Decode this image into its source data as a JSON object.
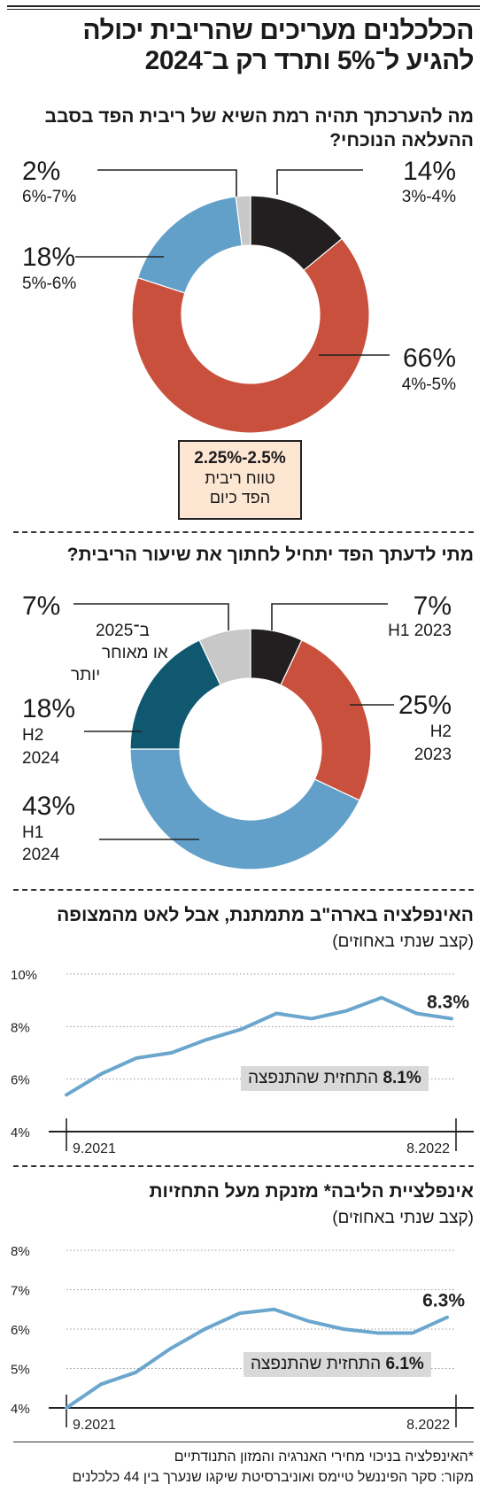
{
  "title_lines": [
    "הכלכלנים מעריכים שהריבית יכולה",
    "להגיע ל־5% ותרד רק ב־2024"
  ],
  "colors": {
    "black": "#231f20",
    "red": "#c9503c",
    "lightblue": "#62a0c9",
    "gray": "#c8c8c8",
    "darkteal": "#0f5870",
    "line": "#6aa6cd",
    "box": "#fde6d2"
  },
  "chart_data": [
    {
      "type": "pie",
      "title": "מה להערכתך תהיה רמת השיא של ריבית הפד בסבב ההעלאה הנוכחי?",
      "slices": [
        {
          "label": "3%-4%",
          "value": 14,
          "pct": "14%",
          "color": "#231f20"
        },
        {
          "label": "4%-5%",
          "value": 66,
          "pct": "66%",
          "color": "#c9503c"
        },
        {
          "label": "5%-6%",
          "value": 18,
          "pct": "18%",
          "color": "#62a0c9"
        },
        {
          "label": "6%-7%",
          "value": 2,
          "pct": "2%",
          "color": "#c8c8c8"
        }
      ],
      "annotation": {
        "value": "2.25%-2.5%",
        "text": "טווח ריבית הפד כיום"
      }
    },
    {
      "type": "pie",
      "title": "מתי לדעתך הפד יתחיל לחתוך את שיעור הריבית?",
      "slices": [
        {
          "label": "H1 2023",
          "value": 7,
          "pct": "7%",
          "color": "#231f20"
        },
        {
          "label": "H2 2023",
          "value": 25,
          "pct": "25%",
          "color": "#c9503c"
        },
        {
          "label": "H1 2024",
          "value": 43,
          "pct": "43%",
          "color": "#62a0c9"
        },
        {
          "label": "H2 2024",
          "value": 18,
          "pct": "18%",
          "color": "#0f5870"
        },
        {
          "label": "ב־2025 או מאוחר יותר",
          "value": 7,
          "pct": "7%",
          "color": "#c8c8c8"
        }
      ]
    },
    {
      "type": "line",
      "title": "האינפלציה בארה\"ב מתמתנת, אבל לאט מהמצופה",
      "subtitle": "(קצב שנתי באחוזים)",
      "y_ticks": [
        "10%",
        "8%",
        "6%",
        "4%"
      ],
      "ylim": [
        4,
        10
      ],
      "x_labels": [
        "9.2021",
        "8.2022"
      ],
      "values": [
        5.4,
        6.2,
        6.8,
        7.0,
        7.5,
        7.9,
        8.5,
        8.3,
        8.6,
        9.1,
        8.5,
        8.3
      ],
      "end_label": "8.3%",
      "forecast": {
        "value": "8.1%",
        "text": "התחזית שהתנפצה"
      }
    },
    {
      "type": "line",
      "title": "אינפלציית הליבה* מזנקת מעל התחזיות",
      "subtitle": "(קצב שנתי באחוזים)",
      "y_ticks": [
        "8%",
        "7%",
        "6%",
        "5%",
        "4%"
      ],
      "ylim": [
        4,
        8
      ],
      "x_labels": [
        "9.2021",
        "8.2022"
      ],
      "values": [
        4.0,
        4.6,
        4.9,
        5.5,
        6.0,
        6.4,
        6.5,
        6.2,
        6.0,
        5.9,
        5.9,
        6.3
      ],
      "end_label": "6.3%",
      "forecast": {
        "value": "6.1%",
        "text": "התחזית שהתנפצה"
      }
    }
  ],
  "footnote": "*האינפלציה בניכוי מחירי האנרגיה והמזון התנודתיים",
  "source": "מקור: סקר הפיננשל טיימס ואוניברסיטת שיקגו שנערך בין 44 כלכלנים"
}
